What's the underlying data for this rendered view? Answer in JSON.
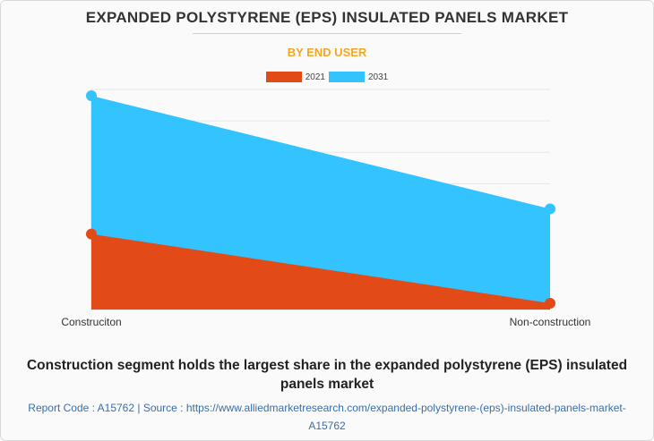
{
  "title": "EXPANDED POLYSTYRENE (EPS) INSULATED PANELS MARKET",
  "subtitle": "BY END USER",
  "colors": {
    "series_2021": "#e24a17",
    "series_2031": "#33c3ff",
    "subtitle": "#f5a623",
    "grid": "#e6e6e6"
  },
  "chart_data": {
    "type": "area",
    "categories": [
      "Construciton",
      "Non-construction"
    ],
    "series": [
      {
        "name": "2021",
        "values": [
          2.4,
          0.2
        ]
      },
      {
        "name": "2031",
        "values": [
          6.8,
          3.2
        ]
      }
    ],
    "ylim": [
      0,
      7
    ],
    "grid": true,
    "legend": "top-center",
    "xlabel": "",
    "ylabel": ""
  },
  "caption": "Construction segment holds the largest share in the expanded polystyrene (EPS) insulated panels market",
  "footer": "Report Code : A15762  |  Source : https://www.alliedmarketresearch.com/expanded-polystyrene-(eps)-insulated-panels-market-A15762"
}
